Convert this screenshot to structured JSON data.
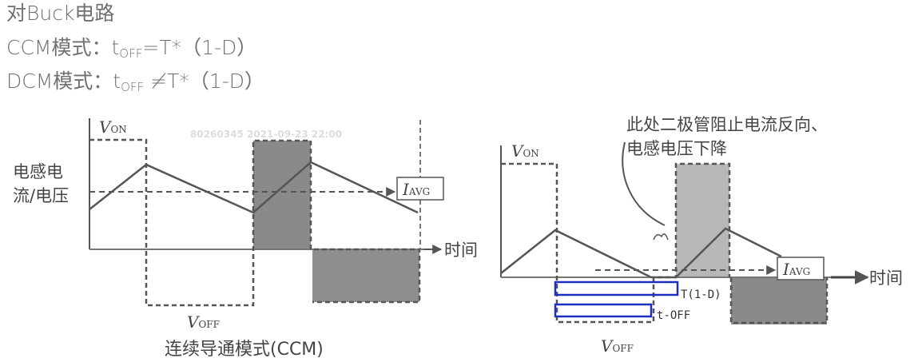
{
  "header": {
    "title": "对Buck电路",
    "ccm_prefix": "CCM模式：t",
    "ccm_sub": "OFF",
    "ccm_rest": "=T*（1-D）",
    "dcm_prefix": "DCM模式：t",
    "dcm_sub": "OFF",
    "dcm_rest": " ≠T*（1-D）"
  },
  "watermark": "80260345 2021-09-23 22:00",
  "left_diagram": {
    "y_label_line1": "电感电",
    "y_label_line2": "流/电压",
    "v_on_letter": "V",
    "v_on_sub": "ON",
    "v_off_letter": "V",
    "v_off_sub": "OFF",
    "i_avg_letter": "I",
    "i_avg_sub": "AVG",
    "time_axis": "时间",
    "caption": "连续导通模式(CCM)"
  },
  "right_diagram": {
    "annotation_line1": "此处二极管阻止电流反向、",
    "annotation_line2": "电感电压下降",
    "v_on_letter": "V",
    "v_on_sub": "ON",
    "v_off_letter": "V",
    "v_off_sub": "OFF",
    "i_avg_letter": "I",
    "i_avg_sub": "AVG",
    "time_axis": "时间",
    "bar_label_1": "T(1-D)",
    "bar_label_2": "t-OFF"
  },
  "colors": {
    "header_text": "#707070",
    "diagram_ink": "#555555",
    "shade_dark": "#8a8a8a",
    "shade_light": "#b8b8b8",
    "annotation_blue": "#1c2fbf"
  }
}
